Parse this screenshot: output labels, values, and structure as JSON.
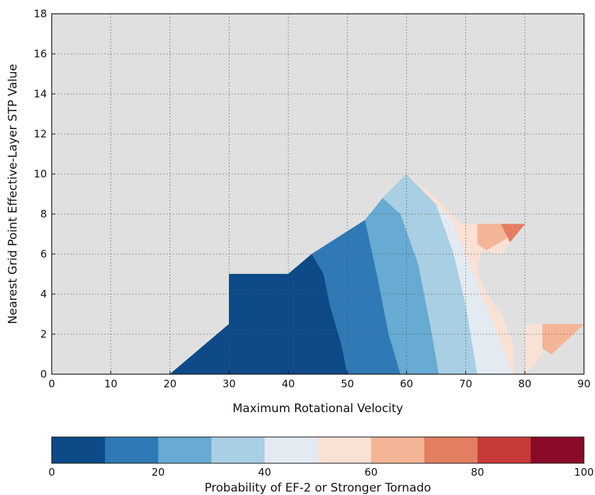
{
  "chart_data": {
    "type": "contour",
    "xlabel": "Maximum Rotational Velocity",
    "ylabel": "Nearest Grid Point Effective-Layer STP Value",
    "xlim": [
      0,
      90
    ],
    "ylim": [
      0,
      18
    ],
    "xticks": [
      0,
      10,
      20,
      30,
      40,
      50,
      60,
      70,
      80,
      90
    ],
    "yticks": [
      0,
      2,
      4,
      6,
      8,
      10,
      12,
      14,
      16,
      18
    ],
    "grid": true,
    "background_color": "#e0e0e0",
    "colorbar": {
      "label": "Probability of EF-2 or Stronger Tornado",
      "ticks": [
        0,
        20,
        40,
        60,
        80,
        100
      ],
      "levels": [
        0,
        10,
        20,
        30,
        40,
        50,
        60,
        70,
        80,
        90,
        100
      ],
      "colors": [
        "#0d4a87",
        "#2f79b6",
        "#67aad2",
        "#a9cfe4",
        "#e3eaf2",
        "#f9e1d6",
        "#f4b597",
        "#e37e63",
        "#c73a38",
        "#8a0b28"
      ]
    },
    "regions": [
      {
        "level": "0-10",
        "color": "#0d4a87",
        "points": [
          [
            20,
            0
          ],
          [
            50,
            0
          ],
          [
            49,
            1.5
          ],
          [
            47,
            3.5
          ],
          [
            46,
            5
          ],
          [
            44,
            6
          ],
          [
            40,
            5
          ],
          [
            30,
            5
          ],
          [
            30,
            2.5
          ]
        ]
      },
      {
        "level": "10-20",
        "color": "#2f79b6",
        "points": [
          [
            50,
            0
          ],
          [
            59,
            0
          ],
          [
            57,
            2
          ],
          [
            55,
            5
          ],
          [
            53,
            7.7
          ],
          [
            44,
            6
          ],
          [
            46,
            5
          ],
          [
            47,
            3.5
          ],
          [
            49,
            1.5
          ]
        ]
      },
      {
        "level": "20-30",
        "color": "#67aad2",
        "points": [
          [
            59,
            0
          ],
          [
            65.5,
            0
          ],
          [
            64,
            2.5
          ],
          [
            62,
            5.5
          ],
          [
            59,
            8
          ],
          [
            56,
            8.8
          ],
          [
            53,
            7.7
          ],
          [
            55,
            5
          ],
          [
            57,
            2
          ]
        ]
      },
      {
        "level": "30-40",
        "color": "#a9cfe4",
        "points": [
          [
            65.5,
            0
          ],
          [
            72,
            0
          ],
          [
            70,
            3.5
          ],
          [
            68,
            6
          ],
          [
            65,
            8.5
          ],
          [
            60,
            10
          ],
          [
            56,
            8.8
          ],
          [
            59,
            8
          ],
          [
            62,
            5.5
          ],
          [
            64,
            2.5
          ]
        ]
      },
      {
        "level": "40-50",
        "color": "#e3eaf2",
        "points": [
          [
            72,
            0
          ],
          [
            78,
            0
          ],
          [
            78,
            1.5
          ],
          [
            76,
            3
          ],
          [
            74,
            3.8
          ],
          [
            72,
            5
          ],
          [
            70,
            6
          ],
          [
            68,
            7.5
          ],
          [
            66,
            8.5
          ],
          [
            60,
            10
          ],
          [
            65,
            8.5
          ],
          [
            68,
            6
          ],
          [
            70,
            3.5
          ]
        ]
      },
      {
        "level": "50-60",
        "color": "#f9e1d6",
        "points": [
          [
            78,
            0
          ],
          [
            80,
            0
          ],
          [
            80,
            2.5
          ],
          [
            84,
            2.5
          ],
          [
            83,
            1
          ],
          [
            80,
            0
          ],
          [
            78,
            0
          ],
          [
            78,
            1.5
          ],
          [
            76,
            3
          ],
          [
            74,
            3.8
          ],
          [
            72,
            5
          ],
          [
            72,
            5.5
          ],
          [
            73,
            6.2
          ],
          [
            76,
            6
          ],
          [
            72,
            7
          ],
          [
            72,
            7.5
          ],
          [
            69,
            7.5
          ],
          [
            66,
            8.5
          ],
          [
            68,
            7.5
          ],
          [
            70,
            6
          ]
        ]
      },
      {
        "level": "50-60b",
        "color": "#f9e1d6",
        "points": [
          [
            60,
            10
          ],
          [
            66,
            8.5
          ],
          [
            69,
            7.5
          ],
          [
            72,
            7.5
          ],
          [
            72,
            5.5
          ],
          [
            73,
            6.2
          ],
          [
            76,
            6
          ],
          [
            80,
            7.5
          ],
          [
            72,
            7.5
          ],
          [
            70,
            7
          ]
        ]
      },
      {
        "level": "60-70",
        "color": "#f4b597",
        "points": [
          [
            72,
            7.5
          ],
          [
            76.5,
            7.5
          ],
          [
            77,
            6.8
          ],
          [
            73.5,
            6.2
          ],
          [
            72,
            6.5
          ]
        ]
      },
      {
        "level": "60-70b",
        "color": "#f4b597",
        "points": [
          [
            83,
            2.5
          ],
          [
            90,
            2.5
          ],
          [
            84.5,
            1
          ],
          [
            83,
            1.3
          ]
        ]
      },
      {
        "level": "70-80",
        "color": "#e37e63",
        "points": [
          [
            76,
            7.5
          ],
          [
            80,
            7.5
          ],
          [
            77.5,
            6.6
          ]
        ]
      }
    ]
  }
}
